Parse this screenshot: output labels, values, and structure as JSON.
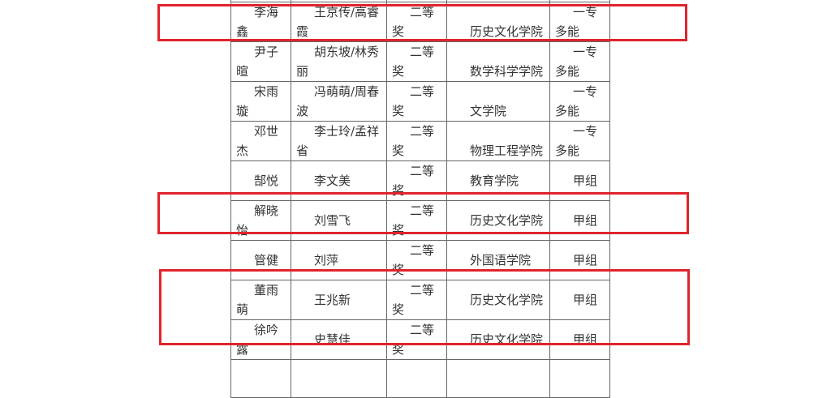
{
  "rows": [
    {
      "name": "李海鑫",
      "advisor": "王京传/高睿霞",
      "award": "二等奖",
      "college": "历史文化学院",
      "group": "一专多能"
    },
    {
      "name": "尹子暄",
      "advisor": "胡东坡/林秀丽",
      "award": "二等奖",
      "college": "数学科学学院",
      "group": "一专多能"
    },
    {
      "name": "宋雨璇",
      "advisor": "冯萌萌/周春波",
      "award": "二等奖",
      "college": "文学院",
      "group": "一专多能"
    },
    {
      "name": "邓世杰",
      "advisor": "李士玲/孟祥省",
      "award": "二等奖",
      "college": "物理工程学院",
      "group": "一专多能"
    },
    {
      "name": "郜悦",
      "advisor": "李文美",
      "award": "二等奖",
      "college": "教育学院",
      "group": "甲组"
    },
    {
      "name": "解晓怡",
      "advisor": "刘雪飞",
      "award": "二等奖",
      "college": "历史文化学院",
      "group": "甲组"
    },
    {
      "name": "管健",
      "advisor": "刘萍",
      "award": "二等奖",
      "college": "外国语学院",
      "group": "甲组"
    },
    {
      "name": "董雨萌",
      "advisor": "王兆新",
      "award": "二等奖",
      "college": "历史文化学院",
      "group": "甲组"
    },
    {
      "name": "徐吟露",
      "advisor": "史慧佳",
      "award": "二等奖",
      "college": "历史文化学院",
      "group": "甲组"
    }
  ],
  "highlight_color": "#e0242c"
}
